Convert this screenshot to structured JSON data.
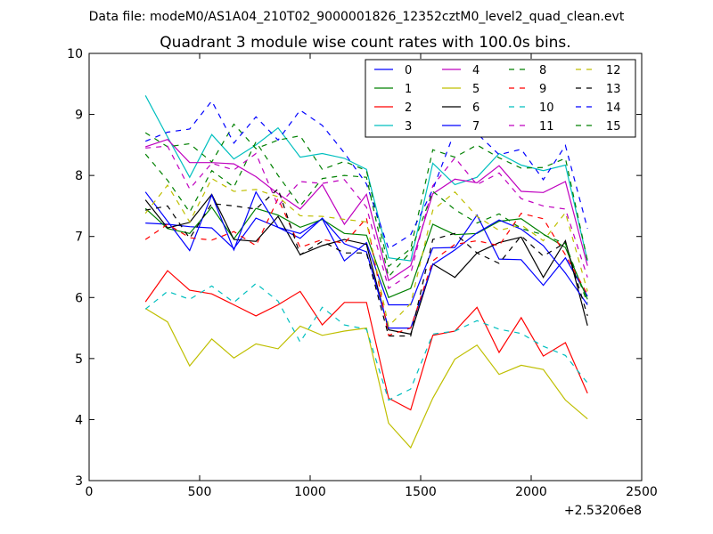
{
  "chart_data": {
    "type": "line",
    "suptitle": "Data file: modeM0/AS1A04_210T02_9000001826_12352cztM0_level2_quad_clean.evt",
    "title": "Quadrant 3 module wise count rates with 100.0s bins.",
    "xlabel": "",
    "ylabel": "",
    "x_offset_label": "+2.53206e8",
    "xlim": [
      0,
      2500
    ],
    "ylim": [
      3,
      10
    ],
    "xticks": [
      0,
      500,
      1000,
      1500,
      2000,
      2500
    ],
    "xtick_labels": [
      "0",
      "500",
      "1000",
      "1500",
      "2000",
      "2500"
    ],
    "yticks": [
      3,
      4,
      5,
      6,
      7,
      8,
      9,
      10
    ],
    "ytick_labels": [
      "3",
      "4",
      "5",
      "6",
      "7",
      "8",
      "9",
      "10"
    ],
    "legend_position": "top-right",
    "x": [
      255,
      355,
      455,
      555,
      655,
      755,
      855,
      955,
      1055,
      1155,
      1255,
      1355,
      1455,
      1555,
      1655,
      1755,
      1855,
      1955,
      2055,
      2155,
      2255
    ],
    "series": [
      {
        "name": "0",
        "color": "#0000ff",
        "dash": "solid",
        "values": [
          7.22,
          7.2,
          7.16,
          7.14,
          6.8,
          7.3,
          7.15,
          7.05,
          7.29,
          6.6,
          6.9,
          5.88,
          5.88,
          6.81,
          6.82,
          7.35,
          6.63,
          6.62,
          6.2,
          6.65,
          6.02
        ]
      },
      {
        "name": "1",
        "color": "#008000",
        "dash": "solid",
        "values": [
          7.46,
          7.13,
          7.05,
          7.48,
          6.96,
          7.46,
          7.35,
          7.15,
          7.28,
          7.05,
          7.02,
          6.0,
          6.15,
          7.2,
          7.03,
          7.05,
          7.25,
          7.29,
          7.04,
          6.82,
          5.97
        ]
      },
      {
        "name": "2",
        "color": "#ff0000",
        "dash": "solid",
        "values": [
          5.93,
          6.44,
          6.12,
          6.06,
          5.88,
          5.7,
          5.88,
          6.1,
          5.55,
          5.92,
          5.92,
          4.35,
          4.16,
          5.38,
          5.45,
          5.84,
          5.1,
          5.67,
          5.04,
          5.26,
          4.43
        ]
      },
      {
        "name": "3",
        "color": "#00bfbf",
        "dash": "solid",
        "values": [
          9.31,
          8.63,
          7.97,
          8.67,
          8.27,
          8.5,
          8.78,
          8.3,
          8.36,
          8.28,
          8.1,
          6.65,
          6.6,
          8.2,
          7.85,
          7.97,
          8.36,
          8.17,
          8.08,
          8.17,
          6.6
        ]
      },
      {
        "name": "4",
        "color": "#bf00bf",
        "dash": "solid",
        "values": [
          8.47,
          8.59,
          8.21,
          8.21,
          8.19,
          7.98,
          7.7,
          7.45,
          7.85,
          7.2,
          7.69,
          6.28,
          6.52,
          7.7,
          7.94,
          7.88,
          8.16,
          7.74,
          7.72,
          7.9,
          6.52
        ]
      },
      {
        "name": "5",
        "color": "#bfbf00",
        "dash": "solid",
        "values": [
          5.82,
          5.6,
          4.88,
          5.32,
          5.01,
          5.24,
          5.16,
          5.53,
          5.38,
          5.45,
          5.5,
          3.94,
          3.54,
          4.35,
          4.99,
          5.22,
          4.74,
          4.89,
          4.82,
          4.32,
          4.01
        ]
      },
      {
        "name": "6",
        "color": "#000000",
        "dash": "solid",
        "values": [
          7.6,
          7.14,
          7.23,
          7.69,
          6.95,
          6.92,
          7.33,
          6.7,
          6.85,
          6.95,
          6.87,
          5.47,
          5.4,
          6.55,
          6.33,
          6.73,
          6.9,
          6.99,
          6.33,
          6.93,
          5.54
        ]
      },
      {
        "name": "7",
        "color": "#0000ff",
        "dash": "solid",
        "values": [
          7.73,
          7.25,
          6.77,
          7.68,
          6.78,
          7.73,
          7.15,
          6.97,
          7.3,
          6.88,
          6.75,
          5.5,
          5.5,
          6.54,
          6.78,
          7.06,
          7.27,
          7.12,
          6.85,
          6.4,
          5.88
        ]
      },
      {
        "name": "8",
        "color": "#008000",
        "dash": "dashed",
        "values": [
          8.7,
          8.47,
          8.52,
          8.22,
          8.84,
          8.44,
          8.58,
          8.65,
          8.1,
          8.23,
          8.08,
          6.51,
          6.8,
          8.42,
          8.3,
          8.5,
          8.29,
          8.12,
          8.13,
          8.28,
          6.6
        ]
      },
      {
        "name": "9",
        "color": "#ff0000",
        "dash": "dashed",
        "values": [
          6.95,
          7.2,
          6.98,
          6.94,
          7.08,
          6.85,
          7.62,
          6.82,
          6.95,
          6.89,
          7.3,
          5.38,
          5.5,
          6.6,
          6.87,
          6.93,
          6.85,
          7.38,
          7.29,
          6.7,
          6.05
        ]
      },
      {
        "name": "10",
        "color": "#00bfbf",
        "dash": "dashed",
        "values": [
          5.81,
          6.1,
          5.97,
          6.19,
          5.92,
          6.23,
          5.94,
          5.27,
          5.84,
          5.55,
          5.48,
          4.32,
          4.5,
          5.4,
          5.45,
          5.62,
          5.48,
          5.41,
          5.2,
          5.05,
          4.6
        ]
      },
      {
        "name": "11",
        "color": "#bf00bf",
        "dash": "dashed",
        "values": [
          8.45,
          8.48,
          7.78,
          8.2,
          8.09,
          8.36,
          7.5,
          7.9,
          7.87,
          7.93,
          7.48,
          6.15,
          6.39,
          7.83,
          8.29,
          7.85,
          8.04,
          7.62,
          7.5,
          7.45,
          6.33
        ]
      },
      {
        "name": "12",
        "color": "#bfbf00",
        "dash": "dashed",
        "values": [
          7.38,
          7.84,
          7.24,
          7.95,
          7.74,
          7.77,
          7.65,
          7.34,
          7.33,
          7.28,
          7.24,
          5.53,
          5.9,
          7.43,
          7.73,
          7.33,
          7.1,
          7.19,
          6.93,
          7.39,
          6.1
        ]
      },
      {
        "name": "13",
        "color": "#000000",
        "dash": "dashed",
        "values": [
          7.43,
          7.5,
          6.97,
          7.54,
          7.5,
          7.45,
          7.78,
          6.7,
          6.92,
          6.73,
          6.73,
          5.37,
          5.37,
          6.95,
          7.05,
          6.73,
          6.56,
          7.01,
          6.68,
          6.9,
          5.7
        ]
      },
      {
        "name": "14",
        "color": "#0000ff",
        "dash": "dashed",
        "values": [
          8.56,
          8.71,
          8.76,
          9.22,
          8.53,
          8.96,
          8.58,
          9.07,
          8.82,
          8.37,
          7.86,
          6.8,
          7.03,
          7.77,
          8.73,
          8.69,
          8.34,
          8.43,
          7.93,
          8.49,
          7.13
        ]
      },
      {
        "name": "15",
        "color": "#008000",
        "dash": "dashed",
        "values": [
          8.35,
          7.92,
          7.4,
          8.08,
          7.81,
          8.55,
          8.0,
          7.5,
          7.95,
          8.0,
          7.97,
          6.34,
          6.75,
          7.74,
          7.44,
          7.22,
          7.37,
          7.13,
          7.03,
          6.88,
          5.91
        ]
      }
    ]
  }
}
